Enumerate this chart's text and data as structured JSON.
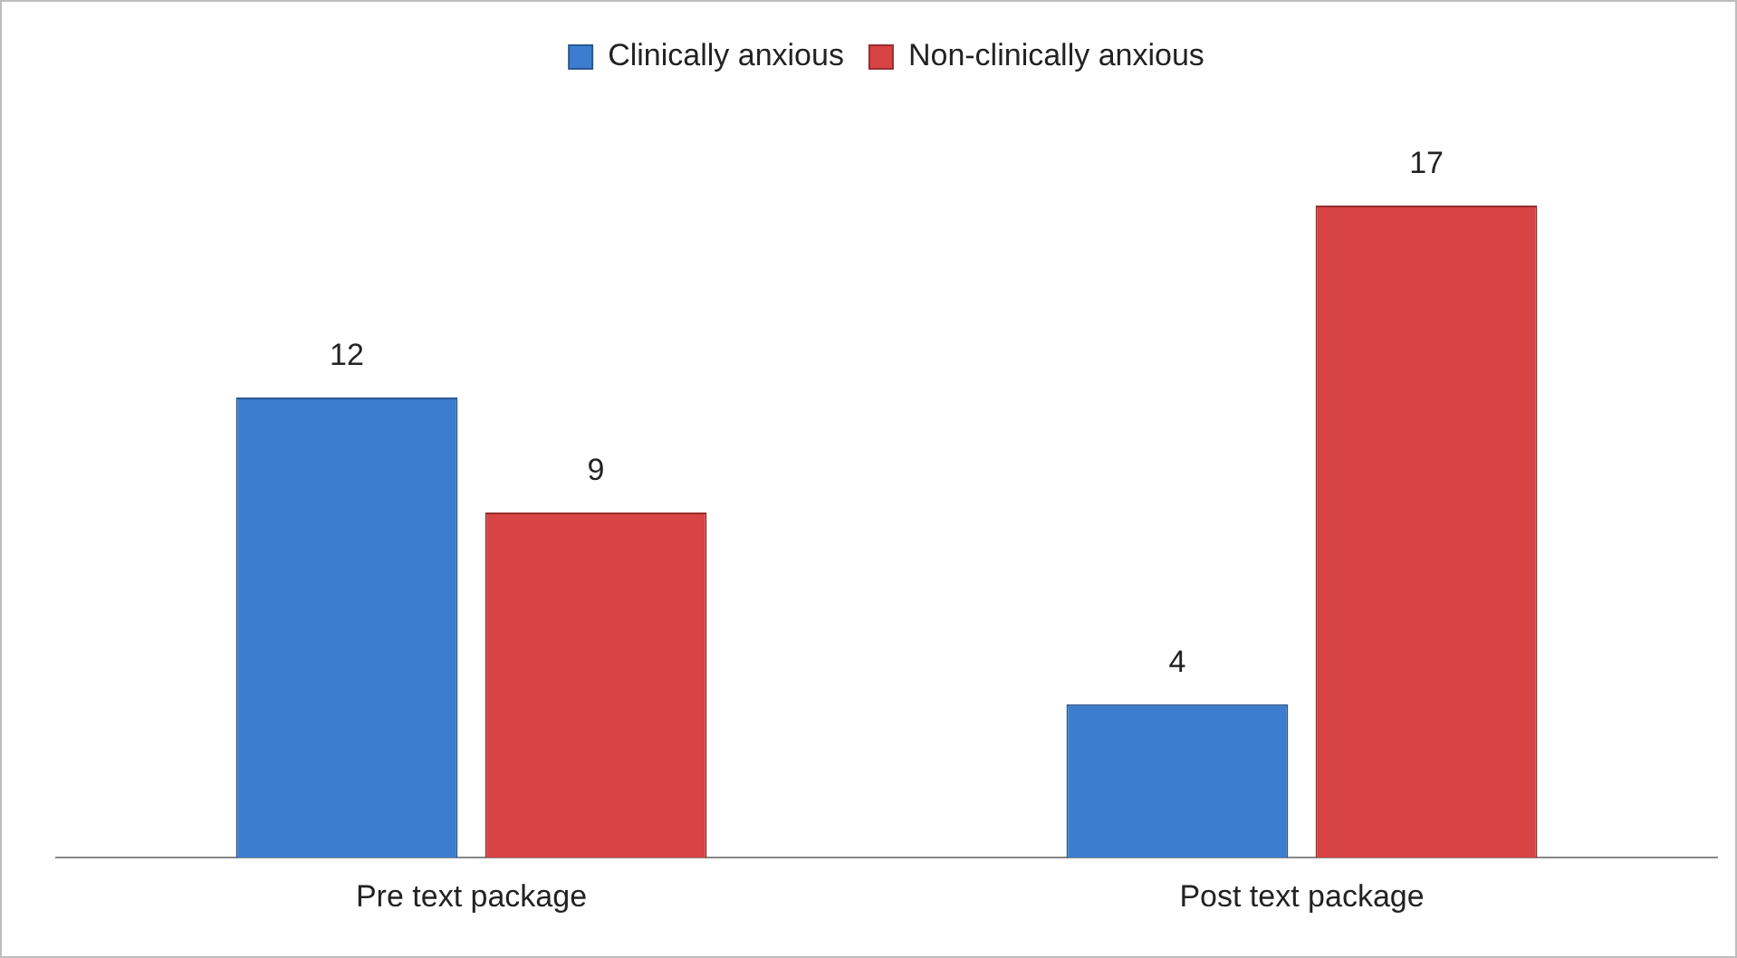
{
  "chart_data": {
    "type": "bar",
    "categories": [
      "Pre text package",
      "Post text package"
    ],
    "series": [
      {
        "name": "Clinically anxious",
        "color": "#3c7dd0",
        "values": [
          12,
          4
        ]
      },
      {
        "name": "Non-clinically anxious",
        "color": "#d84343",
        "values": [
          9,
          17
        ]
      }
    ],
    "tick_labels": "x",
    "data_labels": true,
    "legend": "top",
    "grid": false
  }
}
